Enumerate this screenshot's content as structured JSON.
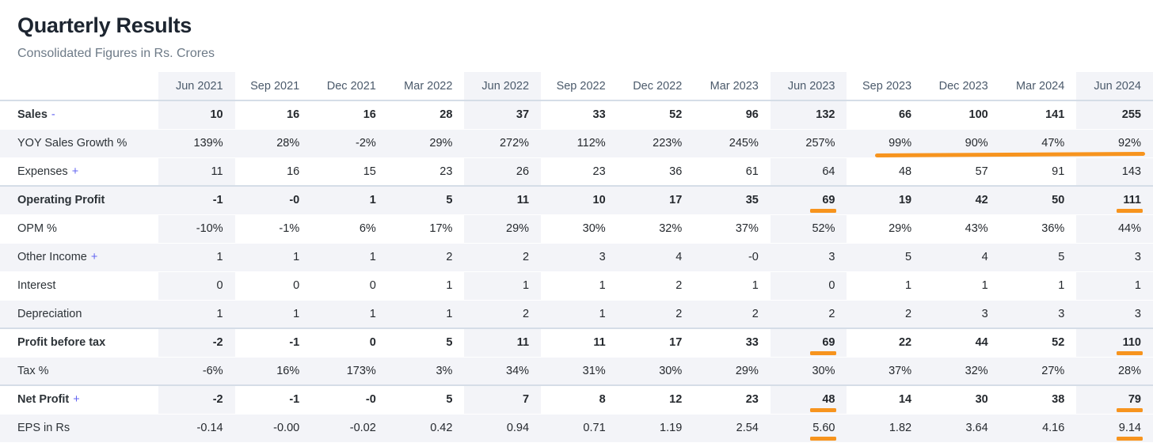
{
  "header": {
    "title": "Quarterly Results",
    "subtitle": "Consolidated Figures in Rs. Crores"
  },
  "table": {
    "columns": [
      "Jun 2021",
      "Sep 2021",
      "Dec 2021",
      "Mar 2022",
      "Jun 2022",
      "Sep 2022",
      "Dec 2022",
      "Mar 2023",
      "Jun 2023",
      "Sep 2023",
      "Dec 2023",
      "Mar 2024",
      "Jun 2024"
    ],
    "highlight_columns": [
      0,
      4,
      8,
      12
    ],
    "rows": [
      {
        "label": "Sales",
        "toggle": "-",
        "bold": true,
        "section": false,
        "values": [
          "10",
          "16",
          "16",
          "28",
          "37",
          "33",
          "52",
          "96",
          "132",
          "66",
          "100",
          "141",
          "255"
        ]
      },
      {
        "label": "YOY Sales Growth %",
        "toggle": "",
        "bold": false,
        "section": false,
        "values": [
          "139%",
          "28%",
          "-2%",
          "29%",
          "272%",
          "112%",
          "223%",
          "245%",
          "257%",
          "99%",
          "90%",
          "47%",
          "92%"
        ]
      },
      {
        "label": "Expenses",
        "toggle": "+",
        "bold": false,
        "section": false,
        "values": [
          "11",
          "16",
          "15",
          "23",
          "26",
          "23",
          "36",
          "61",
          "64",
          "48",
          "57",
          "91",
          "143"
        ]
      },
      {
        "label": "Operating Profit",
        "toggle": "",
        "bold": true,
        "section": true,
        "values": [
          "-1",
          "-0",
          "1",
          "5",
          "11",
          "10",
          "17",
          "35",
          "69",
          "19",
          "42",
          "50",
          "111"
        ]
      },
      {
        "label": "OPM %",
        "toggle": "",
        "bold": false,
        "section": false,
        "values": [
          "-10%",
          "-1%",
          "6%",
          "17%",
          "29%",
          "30%",
          "32%",
          "37%",
          "52%",
          "29%",
          "43%",
          "36%",
          "44%"
        ]
      },
      {
        "label": "Other Income",
        "toggle": "+",
        "bold": false,
        "section": false,
        "values": [
          "1",
          "1",
          "1",
          "2",
          "2",
          "3",
          "4",
          "-0",
          "3",
          "5",
          "4",
          "5",
          "3"
        ]
      },
      {
        "label": "Interest",
        "toggle": "",
        "bold": false,
        "section": false,
        "values": [
          "0",
          "0",
          "0",
          "1",
          "1",
          "1",
          "2",
          "1",
          "0",
          "1",
          "1",
          "1",
          "1"
        ]
      },
      {
        "label": "Depreciation",
        "toggle": "",
        "bold": false,
        "section": false,
        "values": [
          "1",
          "1",
          "1",
          "1",
          "2",
          "1",
          "2",
          "2",
          "2",
          "2",
          "3",
          "3",
          "3"
        ]
      },
      {
        "label": "Profit before tax",
        "toggle": "",
        "bold": true,
        "section": true,
        "values": [
          "-2",
          "-1",
          "0",
          "5",
          "11",
          "11",
          "17",
          "33",
          "69",
          "22",
          "44",
          "52",
          "110"
        ]
      },
      {
        "label": "Tax %",
        "toggle": "",
        "bold": false,
        "section": false,
        "values": [
          "-6%",
          "16%",
          "173%",
          "3%",
          "34%",
          "31%",
          "30%",
          "29%",
          "30%",
          "37%",
          "32%",
          "27%",
          "28%"
        ]
      },
      {
        "label": "Net Profit",
        "toggle": "+",
        "bold": true,
        "section": true,
        "values": [
          "-2",
          "-1",
          "-0",
          "5",
          "7",
          "8",
          "12",
          "23",
          "48",
          "14",
          "30",
          "38",
          "79"
        ]
      },
      {
        "label": "EPS in Rs",
        "toggle": "",
        "bold": false,
        "section": false,
        "values": [
          "-0.14",
          "-0.00",
          "-0.02",
          "0.42",
          "0.94",
          "0.71",
          "1.19",
          "2.54",
          "5.60",
          "1.82",
          "3.64",
          "4.16",
          "9.14"
        ]
      }
    ]
  },
  "annotations": {
    "color": "#f7941e",
    "long_underline": {
      "row": "YOY Sales Growth %",
      "from_column": "Sep 2023",
      "to_column": "Jun 2024"
    },
    "cell_underlines": [
      {
        "row": "Operating Profit",
        "column": "Jun 2023"
      },
      {
        "row": "Operating Profit",
        "column": "Jun 2024"
      },
      {
        "row": "Profit before tax",
        "column": "Jun 2023"
      },
      {
        "row": "Profit before tax",
        "column": "Jun 2024"
      },
      {
        "row": "Net Profit",
        "column": "Jun 2023"
      },
      {
        "row": "Net Profit",
        "column": "Jun 2024"
      },
      {
        "row": "EPS in Rs",
        "column": "Jun 2023"
      },
      {
        "row": "EPS in Rs",
        "column": "Jun 2024"
      }
    ]
  }
}
